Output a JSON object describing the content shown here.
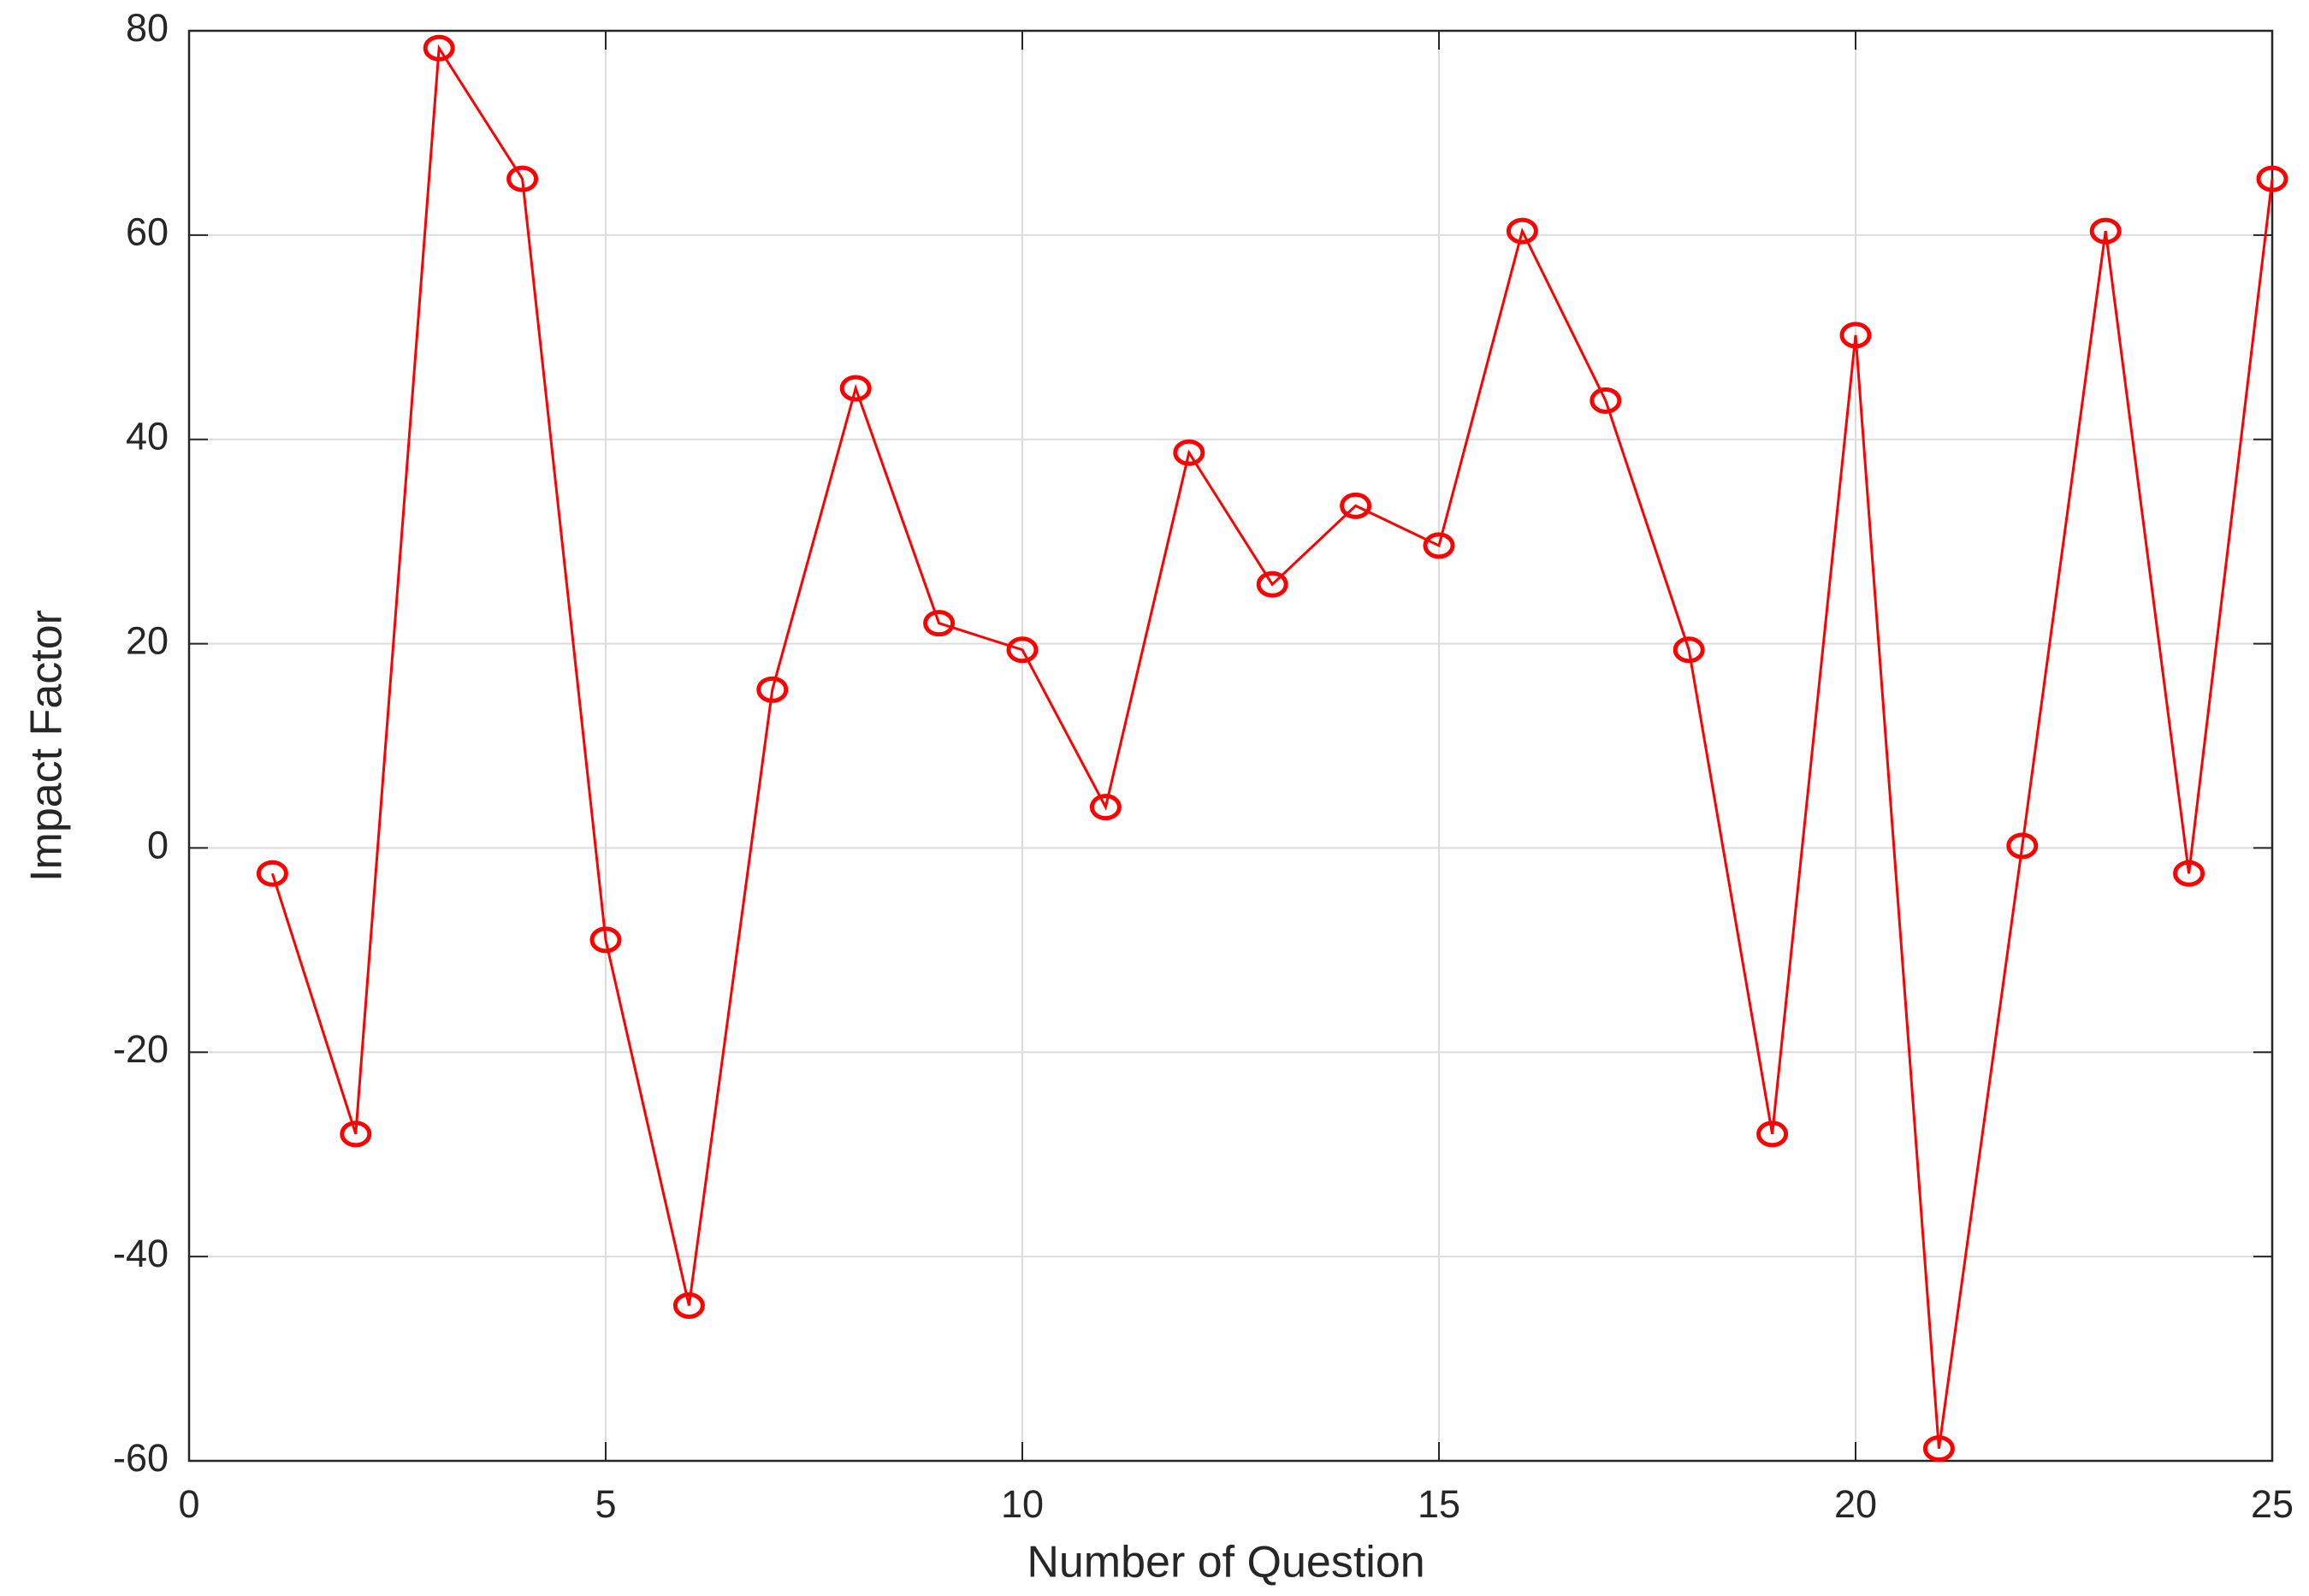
{
  "chart_data": {
    "type": "line",
    "xlabel": "Number of Question",
    "ylabel": "Impact Factor",
    "x": [
      1,
      2,
      3,
      4,
      5,
      6,
      7,
      8,
      9,
      10,
      11,
      12,
      13,
      14,
      15,
      16,
      17,
      18,
      19,
      20,
      21,
      22,
      23,
      24,
      25
    ],
    "series": [
      {
        "color": "#ff0000",
        "marker": "circle",
        "values": [
          -2.5,
          -28,
          78.3,
          65.5,
          -9,
          -44.8,
          15.5,
          45,
          22,
          19.4,
          4,
          38.7,
          25.8,
          33.5,
          29.6,
          60.4,
          43.8,
          19.4,
          -28,
          50.2,
          -58.8,
          0.2,
          60.4,
          -2.5,
          65.5
        ]
      }
    ],
    "xlim": [
      0,
      25
    ],
    "xticks": [
      0,
      5,
      10,
      15,
      20,
      25
    ],
    "ylim": [
      -60,
      80
    ],
    "yticks": [
      -60,
      -40,
      -20,
      0,
      20,
      40,
      60,
      80
    ],
    "grid": true
  }
}
